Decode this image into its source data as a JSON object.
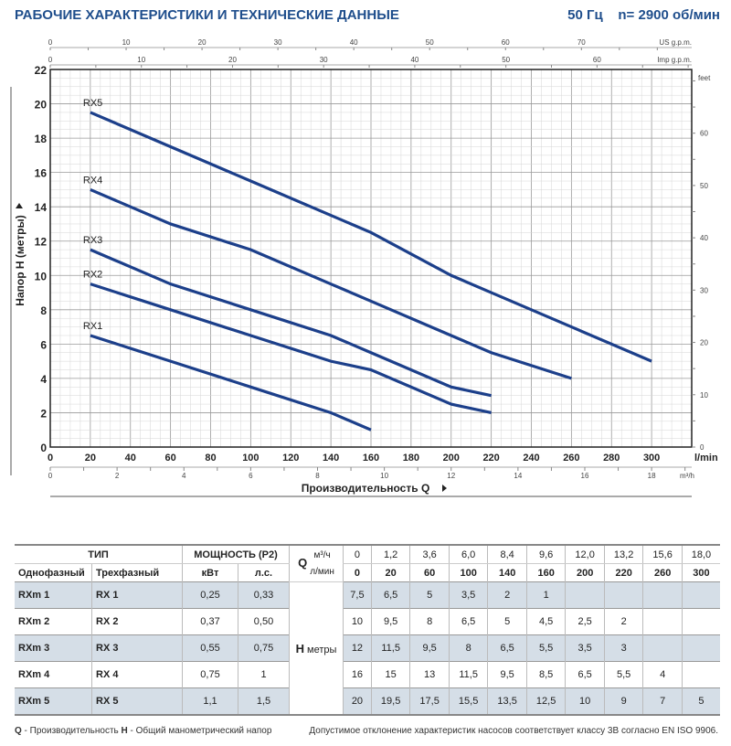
{
  "header": {
    "title": "РАБОЧИЕ ХАРАКТЕРИСТИКИ И ТЕХНИЧЕСКИЕ ДАННЫЕ",
    "freq": "50 Гц    n= 2900 об/мин"
  },
  "chart_data": {
    "type": "line",
    "xlabel": "Производительность Q",
    "ylabel": "Напор H (метры)",
    "xunit": "l/min",
    "x2unit": "m³/h",
    "top1unit": "US g.p.m.",
    "top2unit": "Imp g.p.m.",
    "y2unit": "feet",
    "xlim": [
      0,
      320
    ],
    "ylim": [
      0,
      22
    ],
    "x": [
      20,
      60,
      100,
      140,
      160,
      200,
      220,
      260,
      300
    ],
    "xticks": [
      0,
      20,
      40,
      60,
      80,
      100,
      120,
      140,
      160,
      180,
      200,
      220,
      240,
      260,
      280,
      300
    ],
    "yticks": [
      0,
      2,
      4,
      6,
      8,
      10,
      12,
      14,
      16,
      18,
      20,
      22
    ],
    "x2ticks": [
      0,
      2,
      4,
      6,
      8,
      10,
      12,
      14,
      16,
      18
    ],
    "us_gpm_ticks": [
      0,
      10,
      20,
      30,
      40,
      50,
      60,
      70
    ],
    "imp_gpm_ticks": [
      0,
      10,
      20,
      30,
      40,
      50,
      60
    ],
    "feet_ticks": [
      0,
      10,
      20,
      30,
      40,
      50,
      60
    ],
    "grid": true,
    "series": [
      {
        "name": "RX1",
        "x": [
          20,
          60,
          100,
          140,
          160
        ],
        "values": [
          6.5,
          5,
          3.5,
          2,
          1
        ]
      },
      {
        "name": "RX2",
        "x": [
          20,
          60,
          100,
          140,
          160,
          200,
          220
        ],
        "values": [
          9.5,
          8,
          6.5,
          5,
          4.5,
          2.5,
          2
        ]
      },
      {
        "name": "RX3",
        "x": [
          20,
          60,
          100,
          140,
          160,
          200,
          220
        ],
        "values": [
          11.5,
          9.5,
          8,
          6.5,
          5.5,
          3.5,
          3
        ]
      },
      {
        "name": "RX4",
        "x": [
          20,
          60,
          100,
          140,
          160,
          200,
          220,
          260
        ],
        "values": [
          15,
          13,
          11.5,
          9.5,
          8.5,
          6.5,
          5.5,
          4
        ]
      },
      {
        "name": "RX5",
        "x": [
          20,
          60,
          100,
          140,
          160,
          200,
          220,
          260,
          300
        ],
        "values": [
          19.5,
          17.5,
          15.5,
          13.5,
          12.5,
          10,
          9,
          7,
          5
        ]
      }
    ],
    "line_color": "#1c3f8a"
  },
  "table": {
    "type_h": "ТИП",
    "power_h": "МОЩНОСТЬ (P2)",
    "single": "Однофазный",
    "three": "Трехфазный",
    "kw": "кВт",
    "hp": "л.с.",
    "q": "Q",
    "m3h": "м³/ч",
    "lmin": "л/мин",
    "h": "H",
    "meters": "метры",
    "q_m3h": [
      "0",
      "1,2",
      "3,6",
      "6,0",
      "8,4",
      "9,6",
      "12,0",
      "13,2",
      "15,6",
      "18,0"
    ],
    "q_lmin": [
      "0",
      "20",
      "60",
      "100",
      "140",
      "160",
      "200",
      "220",
      "260",
      "300"
    ],
    "rows": [
      {
        "single": "RXm 1",
        "three": "RX 1",
        "kw": "0,25",
        "hp": "0,33",
        "h": [
          "7,5",
          "6,5",
          "5",
          "3,5",
          "2",
          "1",
          "",
          "",
          "",
          ""
        ]
      },
      {
        "single": "RXm 2",
        "three": "RX 2",
        "kw": "0,37",
        "hp": "0,50",
        "h": [
          "10",
          "9,5",
          "8",
          "6,5",
          "5",
          "4,5",
          "2,5",
          "2",
          "",
          ""
        ]
      },
      {
        "single": "RXm 3",
        "three": "RX 3",
        "kw": "0,55",
        "hp": "0,75",
        "h": [
          "12",
          "11,5",
          "9,5",
          "8",
          "6,5",
          "5,5",
          "3,5",
          "3",
          "",
          ""
        ]
      },
      {
        "single": "RXm 4",
        "three": "RX 4",
        "kw": "0,75",
        "hp": "1",
        "h": [
          "16",
          "15",
          "13",
          "11,5",
          "9,5",
          "8,5",
          "6,5",
          "5,5",
          "4",
          ""
        ]
      },
      {
        "single": "RXm 5",
        "three": "RX 5",
        "kw": "1,1",
        "hp": "1,5",
        "h": [
          "20",
          "19,5",
          "17,5",
          "15,5",
          "13,5",
          "12,5",
          "10",
          "9",
          "7",
          "5"
        ]
      }
    ]
  },
  "footer": {
    "q": "Q",
    "q_text": " - Производительность  ",
    "h": "H",
    "h_text": " - Общий манометрический напор",
    "note": "Допустимое отклонение характеристик насосов соответствует классу 3В согласно EN ISO 9906."
  }
}
